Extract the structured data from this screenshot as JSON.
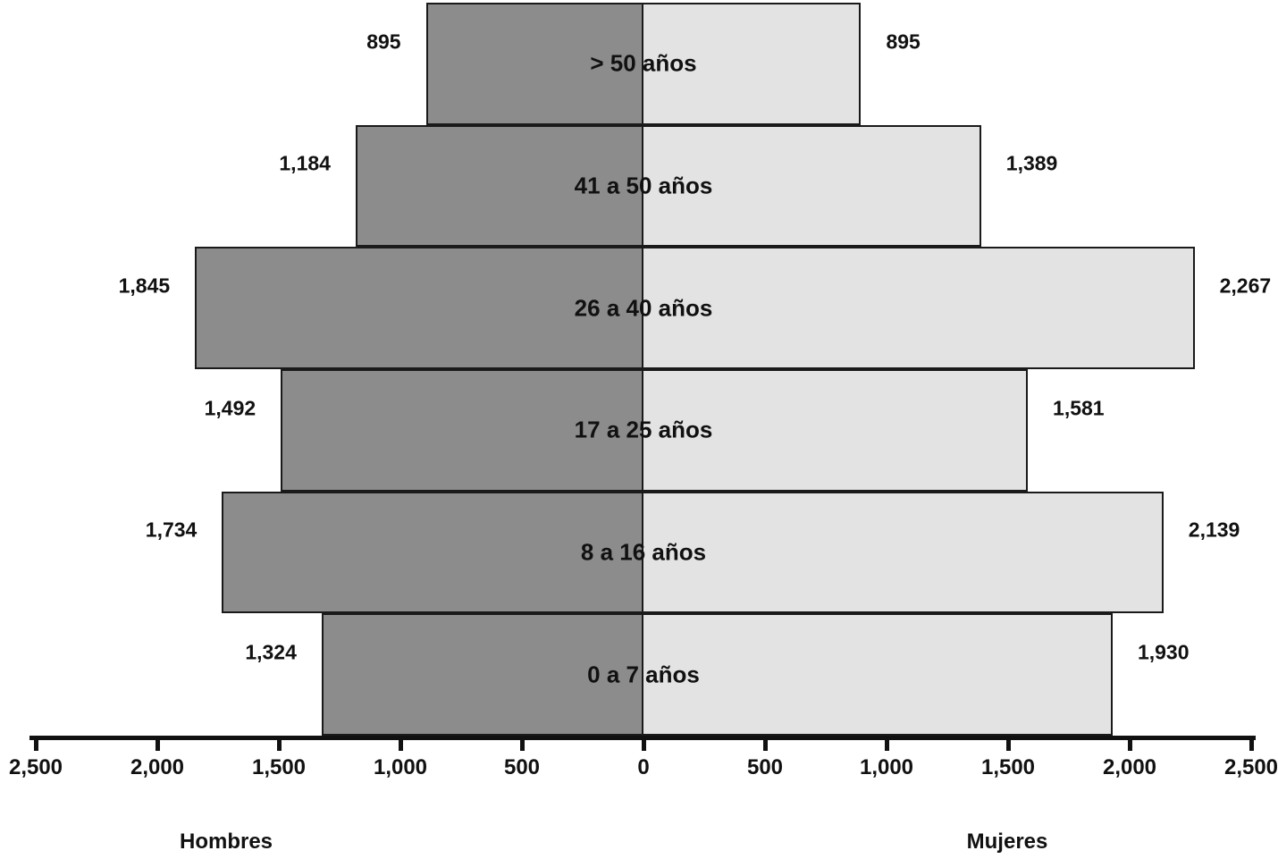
{
  "chart_data": {
    "type": "bar",
    "subtype": "population-pyramid",
    "orientation": "horizontal",
    "title": "",
    "categories": [
      "> 50 años",
      "41 a 50 años",
      "26 a 40 años",
      "17 a 25 años",
      "8 a 16 años",
      "0 a 7 años"
    ],
    "series": [
      {
        "name": "Hombres",
        "side": "left",
        "color": "#8c8c8c",
        "values": [
          895,
          1184,
          1845,
          1492,
          1734,
          1324
        ]
      },
      {
        "name": "Mujeres",
        "side": "right",
        "color": "#e3e3e3",
        "values": [
          895,
          1389,
          2267,
          1581,
          2139,
          1930
        ]
      }
    ],
    "value_labels": [
      "895",
      "1,184",
      "1,845",
      "1,492",
      "1,734",
      "1,324",
      "895",
      "1,389",
      "2,267",
      "1,581",
      "2,139",
      "1,930"
    ],
    "axis": {
      "max": 2500,
      "tick_step": 500,
      "tick_labels": [
        "2,500",
        "2,000",
        "1,500",
        "1,000",
        "500",
        "0",
        "500",
        "1,000",
        "1,500",
        "2,000",
        "2,500"
      ]
    },
    "left_caption": "Hombres",
    "right_caption": "Mujeres",
    "grid": false,
    "legend_position": "below-axis",
    "colors": {
      "left_bar": "#8c8c8c",
      "right_bar": "#e3e3e3",
      "bar_border": "#1a1a1a",
      "text": "#111111",
      "background": "#ffffff"
    }
  }
}
